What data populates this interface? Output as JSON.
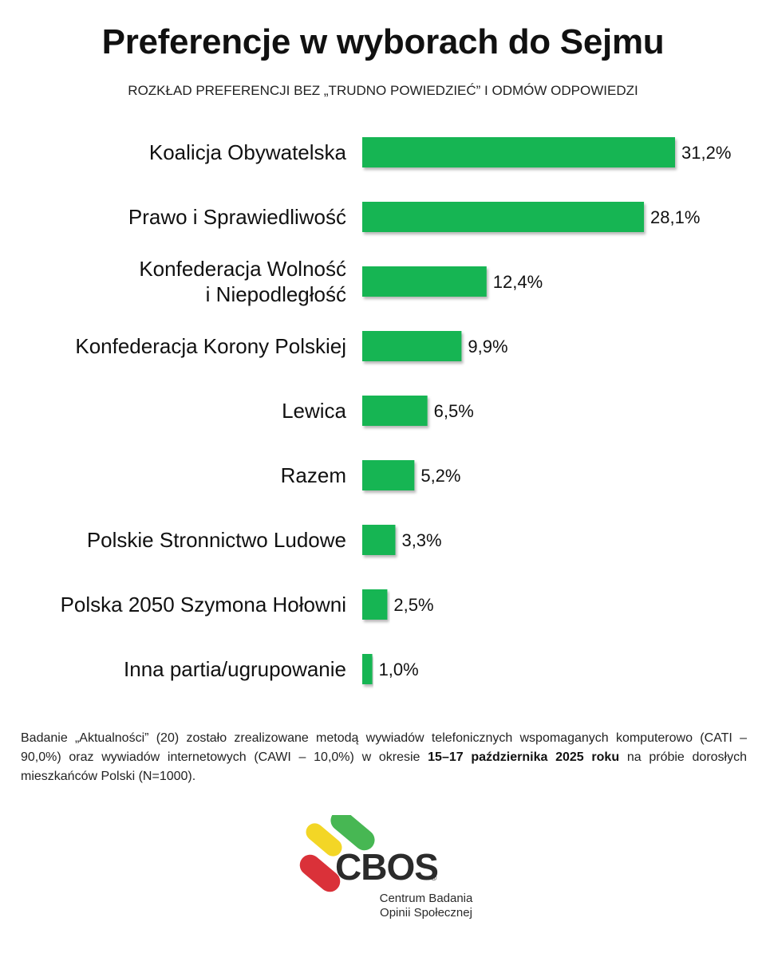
{
  "title": "Preferencje w wyborach do Sejmu",
  "subtitle": "ROZKŁAD PREFERENCJI BEZ „TRUDNO POWIEDZIEĆ” I ODMÓW ODPOWIEDZI",
  "chart_data": {
    "type": "bar",
    "orientation": "horizontal",
    "title": "Preferencje w wyborach do Sejmu",
    "subtitle": "ROZKŁAD PREFERENCJI BEZ „TRUDNO POWIEDZIEĆ” I ODMÓW ODPOWIEDZI",
    "categories": [
      "Koalicja Obywatelska",
      "Prawo i Sprawiedliwość",
      "Konfederacja Wolność i Niepodległość",
      "Konfederacja Korony Polskiej",
      "Lewica",
      "Razem",
      "Polskie Stronnictwo Ludowe",
      "Polska 2050 Szymona Hołowni",
      "Inna partia/ugrupowanie"
    ],
    "category_lines": [
      [
        "Koalicja Obywatelska"
      ],
      [
        "Prawo i Sprawiedliwość"
      ],
      [
        "Konfederacja Wolność",
        "i Niepodległość"
      ],
      [
        "Konfederacja Korony Polskiej"
      ],
      [
        "Lewica"
      ],
      [
        "Razem"
      ],
      [
        "Polskie Stronnictwo Ludowe"
      ],
      [
        "Polska 2050 Szymona Hołowni"
      ],
      [
        "Inna partia/ugrupowanie"
      ]
    ],
    "values": [
      31.2,
      28.1,
      12.4,
      9.9,
      6.5,
      5.2,
      3.3,
      2.5,
      1.0
    ],
    "value_labels": [
      "31,2%",
      "28,1%",
      "12,4%",
      "9,9%",
      "6,5%",
      "5,2%",
      "3,3%",
      "2,5%",
      "1,0%"
    ],
    "bar_color": "#12b552",
    "xlim": [
      0,
      31.2
    ],
    "grid": false,
    "legend": "none"
  },
  "footnote": {
    "part1": "Badanie „Aktualności” (20) zostało zrealizowane metodą wywiadów telefonicznych wspomaganych komputerowo (CATI – 90,0%) oraz wywiadów internetowych (CAWI – 10,0%) w okresie ",
    "bold": "15–17 października 2025 roku",
    "part2": " na próbie dorosłych mieszkańców Polski (N=1000)."
  },
  "logo": {
    "name": "CBOS",
    "registered": "®",
    "line1": "Centrum Badania",
    "line2": "Opinii Społecznej",
    "colors": {
      "yellow": "#f2d41a",
      "green": "#3db34a",
      "red": "#d8262e"
    }
  }
}
